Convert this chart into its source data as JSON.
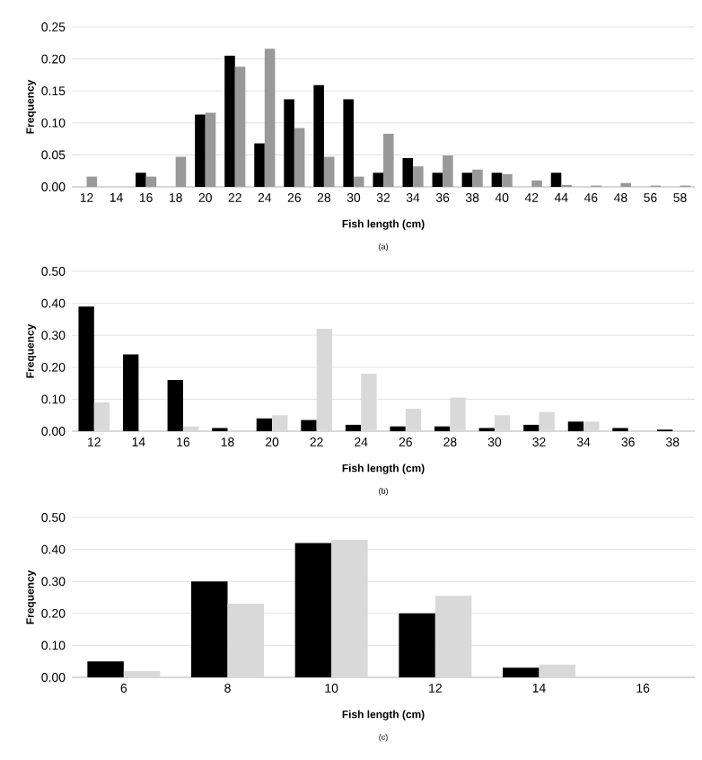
{
  "chart_data": [
    {
      "type": "bar",
      "categories": [
        "12",
        "14",
        "16",
        "18",
        "20",
        "22",
        "24",
        "26",
        "28",
        "30",
        "32",
        "34",
        "36",
        "38",
        "40",
        "42",
        "44",
        "46",
        "48",
        "56",
        "58"
      ],
      "series": [
        {
          "color": "#000000",
          "values": [
            0,
            0,
            0.022,
            0,
            0.113,
            0.205,
            0.068,
            0.137,
            0.159,
            0.137,
            0.022,
            0.045,
            0.022,
            0.022,
            0.022,
            0,
            0.022,
            0,
            0,
            0,
            0
          ]
        },
        {
          "color": "#999999",
          "values": [
            0.016,
            0,
            0.016,
            0.047,
            0.116,
            0.188,
            0.216,
            0.092,
            0.047,
            0.016,
            0.083,
            0.032,
            0.049,
            0.027,
            0.02,
            0.01,
            0.003,
            0.002,
            0.006,
            0.002,
            0.002
          ]
        }
      ],
      "xlabel": "Fish length (cm)",
      "ylabel": "Frequency",
      "ylim": [
        0,
        0.25
      ],
      "yticks": [
        {
          "value": 0,
          "label": "0.00"
        },
        {
          "value": 0.05,
          "label": "0.05"
        },
        {
          "value": 0.1,
          "label": "0.10"
        },
        {
          "value": 0.15,
          "label": "0.15"
        },
        {
          "value": 0.2,
          "label": "0.20"
        },
        {
          "value": 0.25,
          "label": "0.25"
        }
      ],
      "grid": "y",
      "annotations": [
        "(a)"
      ]
    },
    {
      "type": "bar",
      "categories": [
        "12",
        "14",
        "16",
        "18",
        "20",
        "22",
        "24",
        "26",
        "28",
        "30",
        "32",
        "34",
        "36",
        "38"
      ],
      "series": [
        {
          "color": "#000000",
          "values": [
            0.39,
            0.24,
            0.16,
            0.01,
            0.04,
            0.035,
            0.02,
            0.015,
            0.015,
            0.01,
            0.02,
            0.03,
            0.01,
            0.005
          ]
        },
        {
          "color": "#d9d9d9",
          "values": [
            0.09,
            0,
            0.015,
            0,
            0.05,
            0.32,
            0.18,
            0.07,
            0.105,
            0.05,
            0.06,
            0.03,
            0,
            0
          ]
        }
      ],
      "xlabel": "Fish length (cm)",
      "ylabel": "Frequency",
      "ylim": [
        0,
        0.5
      ],
      "yticks": [
        {
          "value": 0,
          "label": "0.00"
        },
        {
          "value": 0.1,
          "label": "0.10"
        },
        {
          "value": 0.2,
          "label": "0.20"
        },
        {
          "value": 0.3,
          "label": "0.30"
        },
        {
          "value": 0.4,
          "label": "0.40"
        },
        {
          "value": 0.5,
          "label": "0.50"
        }
      ],
      "grid": "y",
      "annotations": [
        "(b)"
      ]
    },
    {
      "type": "bar",
      "categories": [
        "6",
        "8",
        "10",
        "12",
        "14",
        "16"
      ],
      "series": [
        {
          "color": "#000000",
          "values": [
            0.05,
            0.3,
            0.42,
            0.2,
            0.03,
            0
          ]
        },
        {
          "color": "#d9d9d9",
          "values": [
            0.02,
            0.23,
            0.43,
            0.255,
            0.04,
            0
          ]
        }
      ],
      "xlabel": "Fish length (cm)",
      "ylabel": "Frequency",
      "ylim": [
        0,
        0.5
      ],
      "yticks": [
        {
          "value": 0,
          "label": "0.00"
        },
        {
          "value": 0.1,
          "label": "0.10"
        },
        {
          "value": 0.2,
          "label": "0.20"
        },
        {
          "value": 0.3,
          "label": "0.30"
        },
        {
          "value": 0.4,
          "label": "0.40"
        },
        {
          "value": 0.5,
          "label": "0.50"
        }
      ],
      "grid": "y",
      "annotations": [
        "(c)"
      ]
    }
  ]
}
